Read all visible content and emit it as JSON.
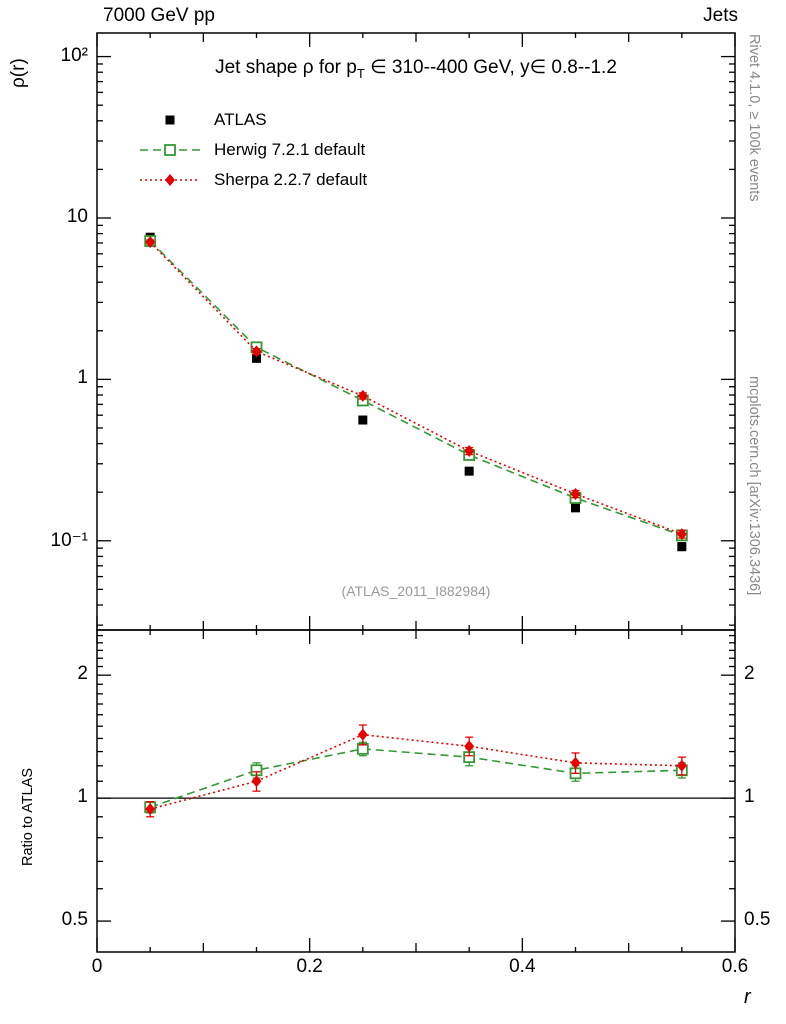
{
  "header": {
    "top_left": "7000 GeV pp",
    "top_right": "Jets"
  },
  "side_labels": {
    "right_top": "Rivet 4.1.0, ≥ 100k events",
    "right_bottom": "mcplots.cern.ch [arXiv:1306.3436]"
  },
  "watermark": "(ATLAS_2011_I882984)",
  "chart_data": {
    "type": "line",
    "title_parts": {
      "pre": "Jet shape ρ for p",
      "sub": "T",
      "post": " ∈ 310--400 GeV, y∈ 0.8--1.2"
    },
    "xlabel": "r",
    "ylabel": "ρ(r)",
    "ratio_ylabel": "Ratio to ATLAS",
    "x": [
      0.05,
      0.15,
      0.25,
      0.35,
      0.45,
      0.55
    ],
    "xlim": [
      0,
      0.6
    ],
    "ylim_main": [
      0.028,
      140
    ],
    "ylim_ratio": [
      0.42,
      2.58
    ],
    "log_y_main": true,
    "log_y_ratio": true,
    "grid": false,
    "legend_position": "top-left-inside",
    "xticks_major": [
      0,
      0.2,
      0.4,
      0.6
    ],
    "xticks_medium": [
      0.1,
      0.3,
      0.5
    ],
    "xticks_minor": [
      0.05,
      0.15,
      0.25,
      0.35,
      0.45,
      0.55
    ],
    "yticks_main": [
      {
        "value": 100,
        "label": "10²"
      },
      {
        "value": 10,
        "label": "10"
      },
      {
        "value": 1,
        "label": "1"
      },
      {
        "value": 0.1,
        "label": "10⁻¹"
      }
    ],
    "yticks_ratio": [
      {
        "value": 2,
        "label": "2"
      },
      {
        "value": 1,
        "label": "1"
      },
      {
        "value": 0.5,
        "label": "0.5"
      }
    ],
    "ratio_reference": 1,
    "series": [
      {
        "name": "ATLAS",
        "color": "#000000",
        "marker": "filled-square",
        "line": "none",
        "values": [
          7.6,
          1.35,
          0.56,
          0.27,
          0.16,
          0.092
        ],
        "errors": [
          0.25,
          0.05,
          0.02,
          0.012,
          0.008,
          0.005
        ]
      },
      {
        "name": "Herwig 7.2.1 default",
        "color": "#339933",
        "marker": "open-square",
        "line": "dashed",
        "values": [
          7.2,
          1.58,
          0.74,
          0.34,
          0.184,
          0.108
        ],
        "errors": [
          0.2,
          0.06,
          0.035,
          0.018,
          0.01,
          0.006
        ],
        "ratio": [
          0.95,
          1.17,
          1.32,
          1.26,
          1.15,
          1.17
        ],
        "ratio_errors": [
          0.03,
          0.05,
          0.05,
          0.06,
          0.05,
          0.05
        ]
      },
      {
        "name": "Sherpa 2.2.7 default",
        "color": "#e60000",
        "marker": "filled-diamond",
        "line": "dotted",
        "values": [
          7.1,
          1.49,
          0.79,
          0.36,
          0.195,
          0.11
        ],
        "errors": [
          0.2,
          0.06,
          0.035,
          0.018,
          0.01,
          0.006
        ],
        "ratio": [
          0.94,
          1.1,
          1.43,
          1.34,
          1.22,
          1.2
        ],
        "ratio_errors": [
          0.04,
          0.06,
          0.08,
          0.07,
          0.07,
          0.06
        ]
      }
    ]
  }
}
